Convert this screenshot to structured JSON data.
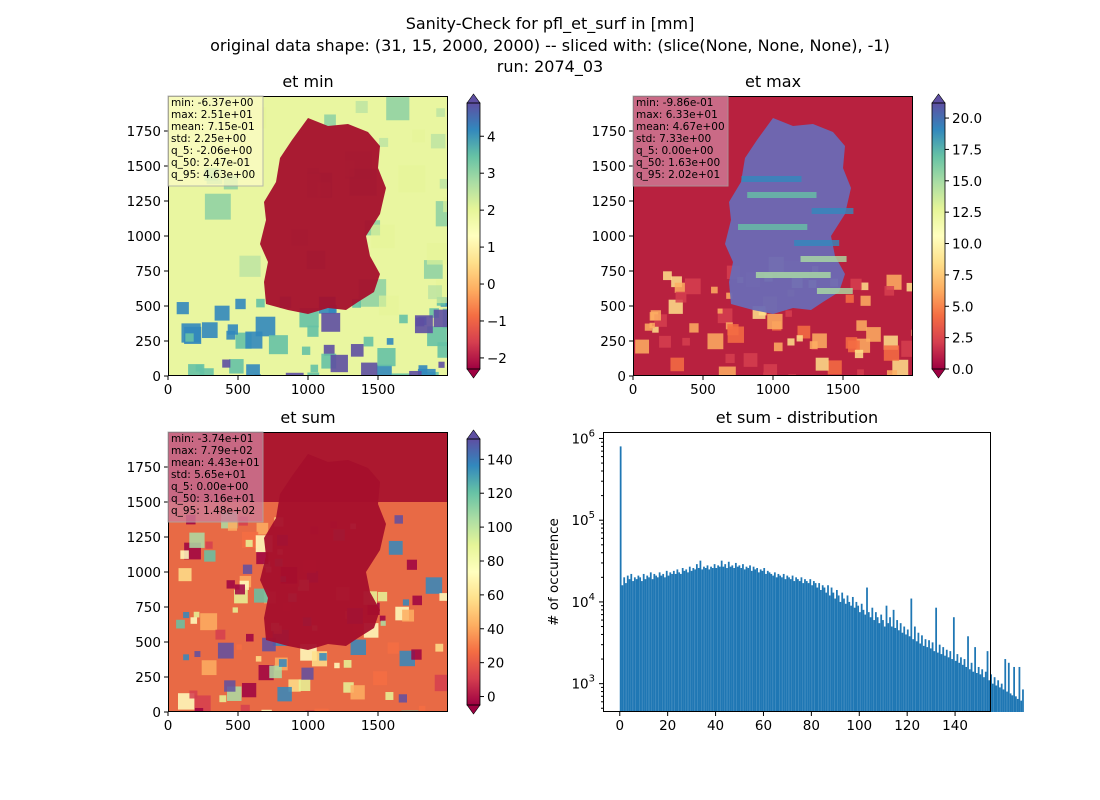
{
  "figure": {
    "suptitle": [
      "Sanity-Check for pfl_et_surf in [mm]",
      "original data shape: (31, 15, 2000, 2000) -- sliced with: (slice(None, None, None), -1)",
      "run: 2074_03"
    ]
  },
  "chart_data": [
    {
      "type": "heatmap",
      "title": "et min",
      "colormap": "Spectral",
      "x_ticks": [
        "0",
        "500",
        "1000",
        "1500"
      ],
      "y_ticks": [
        "0",
        "250",
        "500",
        "750",
        "1000",
        "1250",
        "1500",
        "1750"
      ],
      "xlim": [
        0,
        2000
      ],
      "ylim": [
        0,
        2000
      ],
      "colorbar": {
        "range": [
          -2.3,
          4.9
        ],
        "ticks": [
          "−2",
          "−1",
          "0",
          "1",
          "2",
          "3",
          "4"
        ],
        "tick_values": [
          -2,
          -1,
          0,
          1,
          2,
          3,
          4
        ],
        "extend": "both"
      },
      "stats": [
        "min: -6.37e+00",
        "max: 2.51e+01",
        "mean: 7.15e-01",
        "std: 2.25e+00",
        "q_5: -2.06e+00",
        "q_50: 2.47e-01",
        "q_95: 4.63e+00"
      ],
      "stats_box_color": "#fbfbc4",
      "background": "#e9f6a0",
      "region_color": "#a50f2c"
    },
    {
      "type": "heatmap",
      "title": "et max",
      "colormap": "Spectral",
      "x_ticks": [
        "0",
        "500",
        "1000",
        "1500"
      ],
      "y_ticks": [
        "0",
        "250",
        "500",
        "750",
        "1000",
        "1250",
        "1500",
        "1750"
      ],
      "xlim": [
        0,
        2000
      ],
      "ylim": [
        0,
        2000
      ],
      "colorbar": {
        "range": [
          0,
          21.2
        ],
        "ticks": [
          "0.0",
          "2.5",
          "5.0",
          "7.5",
          "10.0",
          "12.5",
          "15.0",
          "17.5",
          "20.0"
        ],
        "tick_values": [
          0,
          2.5,
          5,
          7.5,
          10,
          12.5,
          15,
          17.5,
          20
        ],
        "extend": "both"
      },
      "stats": [
        "min: -9.86e-01",
        "max: 6.33e+01",
        "mean: 4.67e+00",
        "std: 7.33e+00",
        "q_5: 0.00e+00",
        "q_50: 1.63e+00",
        "q_95: 2.02e+01"
      ],
      "stats_box_color": "#cf7d98",
      "background": "#b8213f",
      "region_color": "#6a6ab5"
    },
    {
      "type": "heatmap",
      "title": "et sum",
      "colormap": "Spectral",
      "x_ticks": [
        "0",
        "500",
        "1000",
        "1500"
      ],
      "y_ticks": [
        "0",
        "250",
        "500",
        "750",
        "1000",
        "1250",
        "1500",
        "1750"
      ],
      "xlim": [
        0,
        2000
      ],
      "ylim": [
        0,
        2000
      ],
      "colorbar": {
        "range": [
          -5,
          152
        ],
        "ticks": [
          "0",
          "20",
          "40",
          "60",
          "80",
          "100",
          "120",
          "140"
        ],
        "tick_values": [
          0,
          20,
          40,
          60,
          80,
          100,
          120,
          140
        ],
        "extend": "both"
      },
      "stats": [
        "min: -3.74e+01",
        "max: 7.79e+02",
        "mean: 4.43e+01",
        "std: 5.65e+01",
        "q_5: 0.00e+00",
        "q_50: 3.16e+01",
        "q_95: 1.48e+02"
      ],
      "stats_box_color": "#cf7d98",
      "background": "#e86a45",
      "region_color": "#a50f2c"
    },
    {
      "type": "bar",
      "title": "et sum - distribution",
      "ylabel": "# of occurrence",
      "xlabel": "",
      "yscale": "log",
      "bar_color": "#1f77b4",
      "xlim": [
        -7,
        155
      ],
      "ylim": [
        450,
        1200000
      ],
      "x_ticks": [
        "0",
        "20",
        "40",
        "60",
        "80",
        "100",
        "120",
        "140"
      ],
      "x_tick_values": [
        0,
        20,
        40,
        60,
        80,
        100,
        120,
        140
      ],
      "y_ticks": [
        "10^3",
        "10^4",
        "10^5",
        "10^6"
      ],
      "y_tick_exponents": [
        3,
        4,
        5,
        6
      ],
      "bin_start": 0,
      "bin_width": 0.74,
      "values": [
        800000,
        16000,
        20000,
        17000,
        21000,
        19000,
        22000,
        18000,
        20000,
        19000,
        21000,
        20000,
        18000,
        22000,
        19000,
        21000,
        20000,
        23000,
        19000,
        22000,
        21000,
        20000,
        23000,
        21000,
        22000,
        20000,
        24000,
        21000,
        23000,
        22000,
        24000,
        22000,
        25000,
        23000,
        22000,
        26000,
        24000,
        25000,
        23000,
        27000,
        24000,
        26000,
        25000,
        29000,
        26000,
        32000,
        25000,
        27000,
        26000,
        28000,
        25000,
        27000,
        26000,
        29000,
        26000,
        28000,
        27000,
        32000,
        27000,
        29000,
        26000,
        31000,
        27000,
        28000,
        26000,
        30000,
        27000,
        28000,
        26000,
        29000,
        25000,
        27000,
        26000,
        28000,
        24000,
        27000,
        25000,
        26000,
        23000,
        25000,
        24000,
        26000,
        22000,
        24000,
        23000,
        22000,
        21000,
        23000,
        20000,
        22000,
        21000,
        20000,
        22000,
        19000,
        21000,
        20000,
        19000,
        21000,
        18000,
        20000,
        19000,
        18000,
        20000,
        17000,
        19000,
        18000,
        17000,
        19000,
        16000,
        18000,
        17000,
        15000,
        17000,
        14000,
        16000,
        15000,
        13000,
        16000,
        12000,
        15000,
        13000,
        11000,
        14000,
        12000,
        10000,
        13000,
        11000,
        9500,
        12000,
        10000,
        9000,
        11500,
        8500,
        10000,
        9000,
        7500,
        9500,
        8000,
        7000,
        15000,
        7500,
        6500,
        8500,
        6000,
        7500,
        6500,
        5500,
        7000,
        6000,
        5000,
        9000,
        5500,
        6500,
        5000,
        8000,
        4800,
        6000,
        4500,
        5500,
        4200,
        5000,
        4000,
        4600,
        3800,
        11000,
        3500,
        5000,
        3300,
        4200,
        3100,
        3900,
        2900,
        3500,
        2800,
        3400,
        2700,
        3200,
        2500,
        8500,
        2400,
        3000,
        2300,
        2800,
        2200,
        2600,
        2100,
        2500,
        2000,
        6500,
        1900,
        2300,
        1800,
        2100,
        1700,
        2000,
        1600,
        3800,
        1500,
        1800,
        1400,
        2800,
        1350,
        1600,
        1300,
        1500,
        1200,
        1400,
        2500,
        1100,
        1300,
        1000,
        1200,
        950,
        1100,
        900,
        1000,
        850,
        2000,
        800,
        1800,
        760,
        720,
        1600,
        700,
        650,
        1600,
        620,
        850
      ]
    }
  ]
}
